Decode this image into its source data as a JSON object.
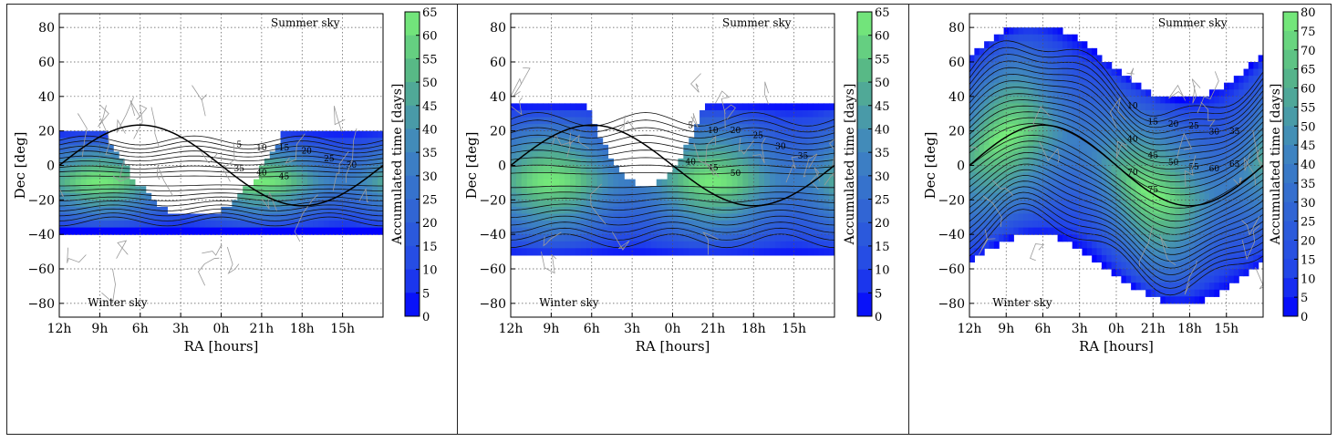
{
  "chart_data": [
    {
      "type": "heatmap",
      "title": "",
      "xlabel": "RA [hours]",
      "ylabel": "Dec [deg]",
      "xticks": [
        "12h",
        "9h",
        "6h",
        "3h",
        "0h",
        "21h",
        "18h",
        "15h"
      ],
      "yticks": [
        "80",
        "60",
        "40",
        "20",
        "0",
        "−20",
        "−40",
        "−60",
        "−80"
      ],
      "ylim": [
        -88,
        88
      ],
      "grid": true,
      "annotations": [
        "Summer sky",
        "Winter sky"
      ],
      "colorbar_label": "Accumulated time [days]",
      "colorbar_ticks": [
        "65",
        "60",
        "55",
        "50",
        "45",
        "40",
        "35",
        "30",
        "25",
        "20",
        "15",
        "10",
        "5",
        "0"
      ],
      "colorbar_max": 65,
      "dec_range": [
        -38,
        20
      ],
      "notch": {
        "center_ra": 150,
        "width": 200,
        "low": -30
      },
      "contour_labels": [
        "5",
        "10",
        "15",
        "20",
        "25",
        "30",
        "35",
        "40",
        "45"
      ]
    },
    {
      "type": "heatmap",
      "title": "",
      "xlabel": "RA [hours]",
      "ylabel": "Dec [deg]",
      "xticks": [
        "12h",
        "9h",
        "6h",
        "3h",
        "0h",
        "21h",
        "18h",
        "15h"
      ],
      "yticks": [
        "80",
        "60",
        "40",
        "20",
        "0",
        "−20",
        "−40",
        "−60",
        "−80"
      ],
      "ylim": [
        -88,
        88
      ],
      "grid": true,
      "annotations": [
        "Summer sky",
        "Winter sky"
      ],
      "colorbar_label": "Accumulated time [days]",
      "colorbar_ticks": [
        "65",
        "60",
        "55",
        "50",
        "45",
        "40",
        "35",
        "30",
        "25",
        "20",
        "15",
        "10",
        "5",
        "0"
      ],
      "colorbar_max": 65,
      "dec_range": [
        -52,
        35
      ],
      "notch": {
        "center_ra": 150,
        "width": 130,
        "low": -12
      },
      "contour_labels": [
        "5",
        "10",
        "20",
        "25",
        "30",
        "35",
        "40",
        "45",
        "50"
      ]
    },
    {
      "type": "heatmap",
      "title": "",
      "xlabel": "RA [hours]",
      "ylabel": "Dec [deg]",
      "xticks": [
        "12h",
        "9h",
        "6h",
        "3h",
        "0h",
        "21h",
        "18h",
        "15h"
      ],
      "yticks": [
        "80",
        "60",
        "40",
        "20",
        "0",
        "−20",
        "−40",
        "−60",
        "−80"
      ],
      "ylim": [
        -88,
        88
      ],
      "grid": true,
      "annotations": [
        "Summer sky",
        "Winter sky"
      ],
      "colorbar_label": "Accumulated time [days]",
      "colorbar_ticks": [
        "80",
        "75",
        "70",
        "65",
        "60",
        "55",
        "50",
        "45",
        "40",
        "35",
        "30",
        "25",
        "20",
        "15",
        "10",
        "5",
        "0"
      ],
      "colorbar_max": 80,
      "dec_range": [
        -80,
        80
      ],
      "notch": null,
      "contour_labels": [
        "10",
        "15",
        "20",
        "25",
        "30",
        "35",
        "40",
        "45",
        "50",
        "55",
        "60",
        "65",
        "70",
        "75"
      ]
    }
  ]
}
